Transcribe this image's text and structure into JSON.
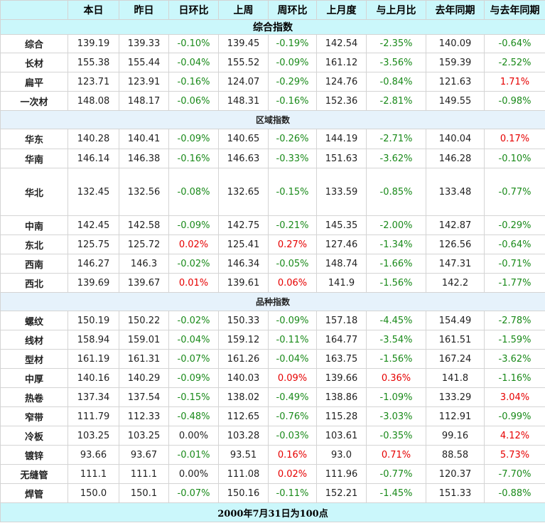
{
  "headers": [
    "",
    "本日",
    "昨日",
    "日环比",
    "上周",
    "周环比",
    "上月度",
    "与上月比",
    "去年同期",
    "与去年同期"
  ],
  "sections": [
    {
      "title": "综合指数",
      "rows": [
        [
          "综合",
          "139.19",
          "139.33",
          "-0.10%",
          "139.45",
          "-0.19%",
          "142.54",
          "-2.35%",
          "140.09",
          "-0.64%"
        ],
        [
          "长材",
          "155.38",
          "155.44",
          "-0.04%",
          "155.52",
          "-0.09%",
          "161.12",
          "-3.56%",
          "159.39",
          "-2.52%"
        ],
        [
          "扁平",
          "123.71",
          "123.91",
          "-0.16%",
          "124.07",
          "-0.29%",
          "124.76",
          "-0.84%",
          "121.63",
          "1.71%"
        ],
        [
          "一次材",
          "148.08",
          "148.17",
          "-0.06%",
          "148.31",
          "-0.16%",
          "152.36",
          "-2.81%",
          "149.55",
          "-0.98%"
        ]
      ]
    },
    {
      "title": "区域指数",
      "rows": [
        [
          "华东",
          "140.28",
          "140.41",
          "-0.09%",
          "140.65",
          "-0.26%",
          "144.19",
          "-2.71%",
          "140.04",
          "0.17%"
        ],
        [
          "华南",
          "146.14",
          "146.38",
          "-0.16%",
          "146.63",
          "-0.33%",
          "151.63",
          "-3.62%",
          "146.28",
          "-0.10%"
        ],
        [
          "华北",
          "132.45",
          "132.56",
          "-0.08%",
          "132.65",
          "-0.15%",
          "133.59",
          "-0.85%",
          "133.48",
          "-0.77%"
        ],
        [
          "中南",
          "142.45",
          "142.58",
          "-0.09%",
          "142.75",
          "-0.21%",
          "145.35",
          "-2.00%",
          "142.87",
          "-0.29%"
        ],
        [
          "东北",
          "125.75",
          "125.72",
          "0.02%",
          "125.41",
          "0.27%",
          "127.46",
          "-1.34%",
          "126.56",
          "-0.64%"
        ],
        [
          "西南",
          "146.27",
          "146.3",
          "-0.02%",
          "146.34",
          "-0.05%",
          "148.74",
          "-1.66%",
          "147.31",
          "-0.71%"
        ],
        [
          "西北",
          "139.69",
          "139.67",
          "0.01%",
          "139.61",
          "0.06%",
          "141.9",
          "-1.56%",
          "142.2",
          "-1.77%"
        ]
      ]
    },
    {
      "title": "品种指数",
      "rows": [
        [
          "螺纹",
          "150.19",
          "150.22",
          "-0.02%",
          "150.33",
          "-0.09%",
          "157.18",
          "-4.45%",
          "154.49",
          "-2.78%"
        ],
        [
          "线材",
          "158.94",
          "159.01",
          "-0.04%",
          "159.12",
          "-0.11%",
          "164.77",
          "-3.54%",
          "161.51",
          "-1.59%"
        ],
        [
          "型材",
          "161.19",
          "161.31",
          "-0.07%",
          "161.26",
          "-0.04%",
          "163.75",
          "-1.56%",
          "167.24",
          "-3.62%"
        ],
        [
          "中厚",
          "140.16",
          "140.29",
          "-0.09%",
          "140.03",
          "0.09%",
          "139.66",
          "0.36%",
          "141.8",
          "-1.16%"
        ],
        [
          "热卷",
          "137.34",
          "137.54",
          "-0.15%",
          "138.02",
          "-0.49%",
          "138.86",
          "-1.09%",
          "133.29",
          "3.04%"
        ],
        [
          "窄带",
          "111.79",
          "112.33",
          "-0.48%",
          "112.65",
          "-0.76%",
          "115.28",
          "-3.03%",
          "112.91",
          "-0.99%"
        ],
        [
          "冷板",
          "103.25",
          "103.25",
          "0.00%",
          "103.28",
          "-0.03%",
          "103.61",
          "-0.35%",
          "99.16",
          "4.12%"
        ],
        [
          "镀锌",
          "93.66",
          "93.67",
          "-0.01%",
          "93.51",
          "0.16%",
          "93.0",
          "0.71%",
          "88.58",
          "5.73%"
        ],
        [
          "无缝管",
          "111.1",
          "111.1",
          "0.00%",
          "111.08",
          "0.02%",
          "111.96",
          "-0.77%",
          "120.37",
          "-7.70%"
        ],
        [
          "焊管",
          "150.0",
          "150.1",
          "-0.07%",
          "150.16",
          "-0.11%",
          "152.21",
          "-1.45%",
          "151.33",
          "-0.88%"
        ]
      ]
    }
  ],
  "footer": "2000年7月31日为100点",
  "colors": {
    "negative": "#1a8a1a",
    "positive": "#e60000",
    "header_bg": "#cbf7fb",
    "section_bg": "#e6f2fb"
  }
}
